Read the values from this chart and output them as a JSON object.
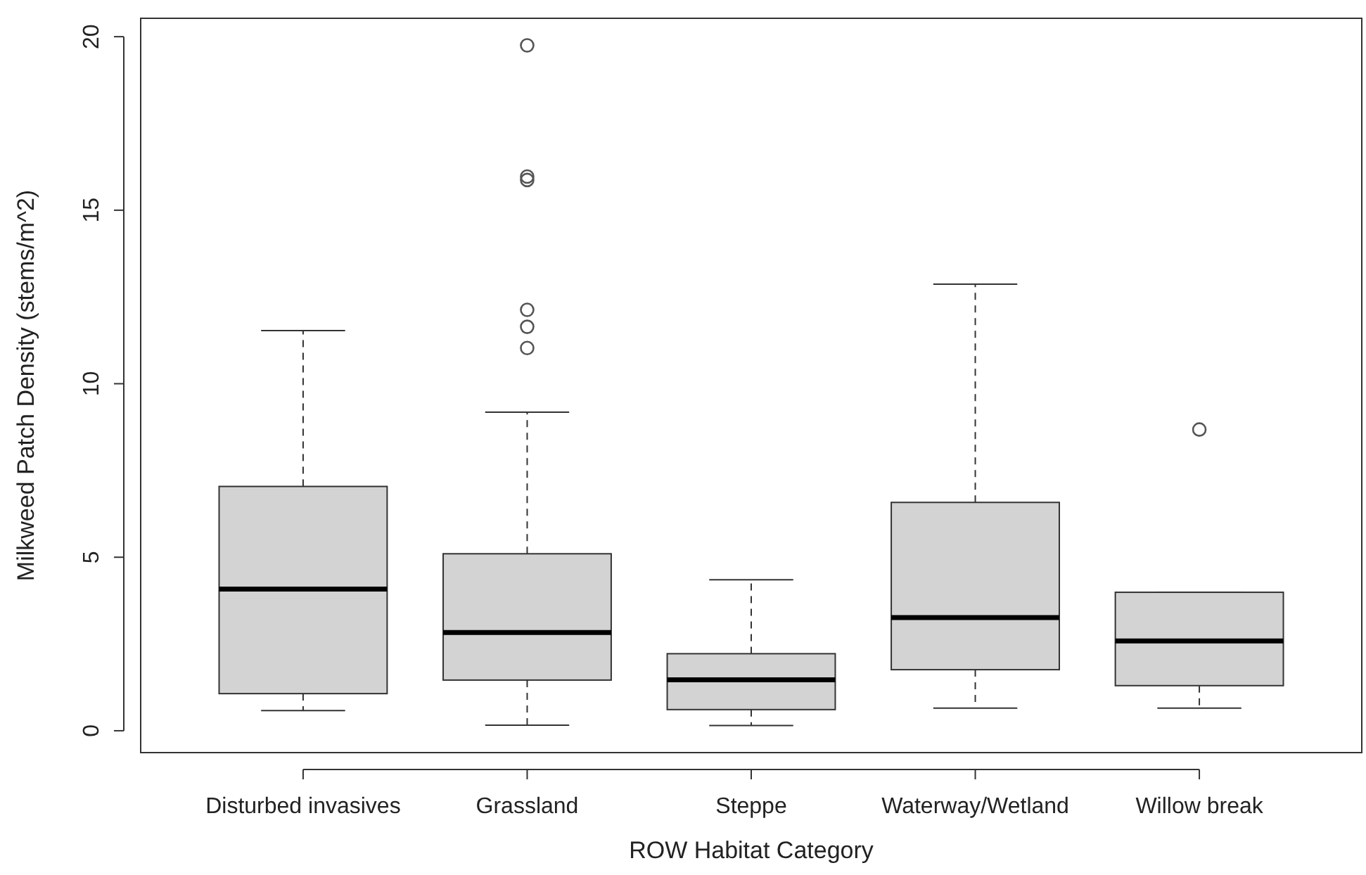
{
  "chart_data": {
    "type": "box",
    "xlabel": "ROW Habitat Category",
    "ylabel": "Milkweed Patch Density (stems/m^2)",
    "categories": [
      "Disturbed invasives",
      "Grassland",
      "Steppe",
      "Waterway/Wetland",
      "Willow break"
    ],
    "boxes": [
      {
        "low": 0.58,
        "q1": 1.07,
        "median": 4.08,
        "q3": 7.04,
        "high": 11.53
      },
      {
        "low": 0.16,
        "q1": 1.46,
        "median": 2.83,
        "q3": 5.1,
        "high": 9.18,
        "outliers": [
          19.75,
          15.97,
          15.87,
          12.13,
          11.64,
          11.03
        ]
      },
      {
        "low": 0.15,
        "q1": 0.61,
        "median": 1.47,
        "q3": 2.22,
        "high": 4.35
      },
      {
        "low": 0.65,
        "q1": 1.76,
        "median": 3.26,
        "q3": 6.58,
        "high": 12.87
      },
      {
        "low": 0.65,
        "q1": 1.3,
        "median": 2.59,
        "q3": 3.99,
        "high": 3.99,
        "outliers": [
          8.68
        ]
      }
    ],
    "color": "#d3d3d3",
    "ylim": [
      -0.63,
      20.53
    ],
    "yticks": [
      0,
      5,
      10,
      15,
      20
    ],
    "grid": false
  }
}
